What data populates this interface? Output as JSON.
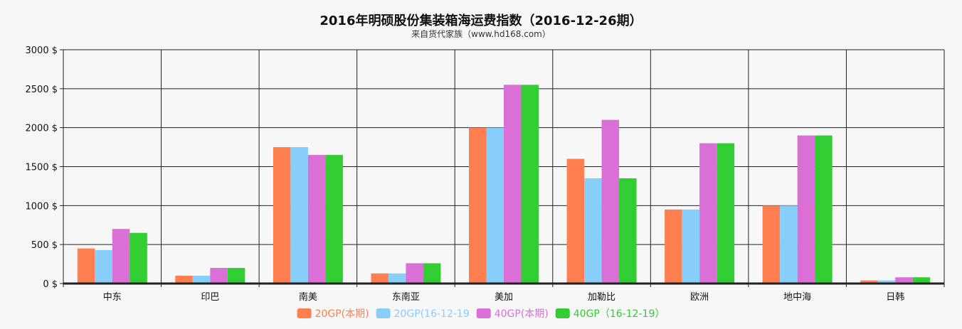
{
  "chart_data": {
    "type": "bar",
    "title": "2016年明硕股份集装箱海运费指数（2016-12-26期）",
    "subtitle": "来自货代家族（www.hd168.com）",
    "categories": [
      "中东",
      "印巴",
      "南美",
      "东南亚",
      "美加",
      "加勒比",
      "欧洲",
      "地中海",
      "日韩"
    ],
    "ylim": [
      0,
      3000
    ],
    "yticks": [
      "0 $",
      "500 $",
      "1000 $",
      "1500 $",
      "2000 $",
      "2500 $",
      "3000 $"
    ],
    "ytick_values": [
      0,
      500,
      1000,
      1500,
      2000,
      2500,
      3000
    ],
    "grid": true,
    "legend_position": "bottom",
    "series": [
      {
        "name": "20GP(本期)",
        "color": "#ff7f50",
        "values": [
          450,
          100,
          1750,
          130,
          2000,
          1600,
          950,
          1000,
          40
        ]
      },
      {
        "name": "20GP(16-12-19",
        "color": "#87cefa",
        "values": [
          430,
          100,
          1750,
          130,
          2000,
          1350,
          950,
          1000,
          40
        ]
      },
      {
        "name": "40GP(本期)",
        "color": "#da70d6",
        "values": [
          700,
          200,
          1650,
          260,
          2550,
          2100,
          1800,
          1900,
          80
        ]
      },
      {
        "name": "40GP（16-12-19）",
        "color": "#32cd32",
        "values": [
          650,
          200,
          1650,
          260,
          2550,
          1350,
          1800,
          1900,
          80
        ]
      }
    ]
  }
}
